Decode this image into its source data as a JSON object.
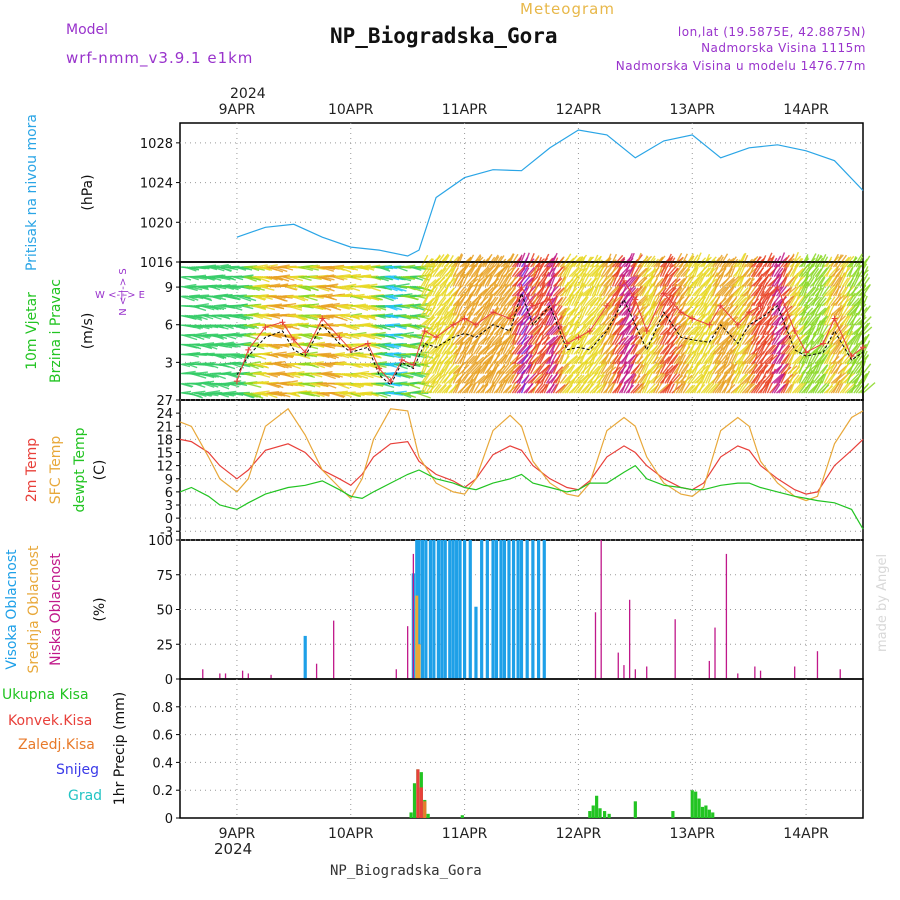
{
  "header": {
    "model_label": "Model",
    "model_name": "wrf-nmm_v3.9.1 e1km",
    "meteogram_label": "Meteogram",
    "station_title": "NP_Biogradska_Gora",
    "lonlat": "lon,lat (19.5875E, 42.8875N)",
    "elevation": "Nadmorska Visina 1115m",
    "model_elevation": "Nadmorska Visina u modelu 1476.77m"
  },
  "footer": {
    "station_label": "NP_Biogradska_Gora",
    "watermark": "made by Angel"
  },
  "time_axis": {
    "year": "2024",
    "days": [
      "9APR",
      "10APR",
      "11APR",
      "12APR",
      "13APR",
      "14APR"
    ]
  },
  "colors": {
    "pressure": "#2aa5e6",
    "temp2m": "#e8403a",
    "sfc_temp": "#e8a83a",
    "dewpoint": "#22c422",
    "high_cloud": "#1ea0e8",
    "mid_cloud": "#e8a83a",
    "low_cloud": "#c0188a",
    "total_precip": "#22c422",
    "conv_precip": "#e8403a",
    "frozen_precip": "#e87a2a",
    "snow": "#3a3ae8",
    "graupel": "#22c4c4",
    "wind_speed": "#000000",
    "gust": "#e8403a",
    "purple_text": "#9933cc",
    "gold_text": "#e8b84a"
  },
  "chart_data": [
    {
      "id": "pressure",
      "type": "line",
      "ylabel_lines": [
        "Pritisak na nivou mora",
        "(hPa)"
      ],
      "ylim": [
        1016,
        1030
      ],
      "yticks": [
        "1016",
        "1020",
        "1024",
        "1028"
      ],
      "ytick_values": [
        1016,
        1020,
        1024,
        1028
      ],
      "series": [
        {
          "x": [
            9,
            9.25,
            9.5,
            9.75,
            10,
            10.25,
            10.5,
            10.6,
            10.75,
            11,
            11.25,
            11.5,
            11.75,
            12,
            12.25,
            12.5,
            12.75,
            13,
            13.25,
            13.5,
            13.75,
            14,
            14.25,
            14.5
          ],
          "values": [
            1018.5,
            1019.5,
            1019.8,
            1018.5,
            1017.5,
            1017.2,
            1016.6,
            1017.2,
            1022.5,
            1024.5,
            1025.3,
            1025.2,
            1027.5,
            1029.3,
            1028.8,
            1026.5,
            1028.2,
            1028.8,
            1026.5,
            1027.5,
            1027.8,
            1027.2,
            1026.2,
            1023.2
          ]
        }
      ]
    },
    {
      "id": "wind",
      "type": "line",
      "ylabel_lines": [
        "10m Vjetar",
        "Brzina i Pravac",
        "(m/s)"
      ],
      "compass_vertical": "N <-|-> S",
      "compass_horizontal": "W <-|-> E",
      "ylim": [
        0,
        11
      ],
      "yticks": [
        "3",
        "6",
        "9"
      ],
      "ytick_values": [
        3,
        6,
        9
      ],
      "series": [
        {
          "name": "speed",
          "x": [
            9,
            9.1,
            9.25,
            9.4,
            9.5,
            9.6,
            9.75,
            9.9,
            10,
            10.15,
            10.25,
            10.35,
            10.45,
            10.55,
            10.65,
            10.75,
            10.9,
            11,
            11.1,
            11.25,
            11.4,
            11.5,
            11.6,
            11.75,
            11.9,
            12,
            12.1,
            12.25,
            12.4,
            12.5,
            12.6,
            12.75,
            12.9,
            13,
            13.15,
            13.25,
            13.4,
            13.5,
            13.6,
            13.75,
            13.9,
            14,
            14.15,
            14.25,
            14.4,
            14.5
          ],
          "values": [
            2.0,
            3.5,
            5.0,
            5.5,
            4.0,
            3.5,
            6.0,
            4.5,
            3.8,
            4.2,
            2.0,
            1.2,
            3.0,
            2.5,
            4.5,
            4.2,
            5.0,
            5.3,
            5.0,
            6.0,
            5.5,
            8.5,
            6.0,
            7.5,
            4.0,
            4.2,
            4.0,
            5.5,
            8.0,
            6.0,
            4.0,
            7.0,
            5.0,
            4.8,
            4.6,
            6.0,
            4.5,
            6.0,
            6.5,
            7.5,
            4.0,
            3.5,
            3.8,
            5.5,
            3.2,
            3.8
          ]
        },
        {
          "name": "gust",
          "x": [
            9,
            9.1,
            9.25,
            9.4,
            9.5,
            9.6,
            9.75,
            9.9,
            10,
            10.15,
            10.25,
            10.35,
            10.45,
            10.55,
            10.65,
            10.75,
            10.9,
            11,
            11.1,
            11.25,
            11.4,
            11.5,
            11.6,
            11.75,
            11.9,
            12,
            12.1,
            12.25,
            12.4,
            12.5,
            12.6,
            12.75,
            12.9,
            13,
            13.15,
            13.25,
            13.4,
            13.5,
            13.6,
            13.75,
            13.9,
            14,
            14.15,
            14.25,
            14.4,
            14.5
          ],
          "values": [
            1.5,
            4.0,
            5.8,
            6.2,
            4.8,
            3.8,
            6.5,
            5.0,
            4.0,
            4.5,
            2.5,
            1.5,
            3.2,
            2.8,
            5.5,
            5.0,
            6.0,
            6.5,
            6.0,
            7.0,
            6.5,
            9.0,
            7.5,
            8.0,
            4.5,
            5.0,
            5.5,
            7.5,
            9.5,
            8.0,
            5.5,
            8.5,
            7.0,
            6.5,
            6.0,
            7.5,
            6.0,
            7.0,
            7.5,
            9.0,
            5.5,
            3.8,
            4.5,
            6.5,
            3.5,
            4.2
          ]
        }
      ]
    },
    {
      "id": "temperature",
      "type": "line",
      "ylabel_lines": [
        "2m Temp",
        "SFC Temp",
        "dewpt Temp",
        "(C)"
      ],
      "ylim": [
        -5,
        27
      ],
      "yticks": [
        "-3",
        "0",
        "3",
        "6",
        "9",
        "12",
        "15",
        "18",
        "21",
        "24",
        "27"
      ],
      "ytick_values": [
        -3,
        0,
        3,
        6,
        9,
        12,
        15,
        18,
        21,
        24,
        27
      ],
      "series": [
        {
          "name": "2m Temp",
          "x": [
            8.5,
            8.6,
            8.75,
            8.85,
            9.0,
            9.1,
            9.25,
            9.45,
            9.6,
            9.75,
            9.9,
            10.0,
            10.1,
            10.2,
            10.35,
            10.5,
            10.6,
            10.75,
            10.9,
            11.0,
            11.1,
            11.25,
            11.4,
            11.5,
            11.6,
            11.75,
            11.9,
            12.0,
            12.1,
            12.25,
            12.4,
            12.5,
            12.6,
            12.75,
            12.9,
            13.0,
            13.1,
            13.25,
            13.4,
            13.5,
            13.6,
            13.75,
            13.9,
            14.0,
            14.1,
            14.25,
            14.4,
            14.5
          ],
          "values": [
            18,
            17.5,
            15,
            12,
            9,
            11,
            15.5,
            17,
            15,
            11,
            9,
            7.5,
            10,
            14,
            17,
            17.5,
            13,
            10,
            8.5,
            7,
            9,
            14.5,
            16.5,
            15.5,
            12,
            9,
            7,
            6.5,
            8.5,
            14,
            16.5,
            15,
            12,
            9,
            7,
            6.5,
            8,
            14,
            16.5,
            15.5,
            12,
            9,
            6.5,
            5.5,
            6,
            12,
            15.5,
            18
          ]
        },
        {
          "name": "SFC Temp",
          "x": [
            8.5,
            8.6,
            8.75,
            8.85,
            9.0,
            9.1,
            9.25,
            9.45,
            9.6,
            9.75,
            9.9,
            10.0,
            10.1,
            10.2,
            10.35,
            10.5,
            10.6,
            10.75,
            10.9,
            11.0,
            11.1,
            11.25,
            11.4,
            11.5,
            11.6,
            11.75,
            11.9,
            12.0,
            12.1,
            12.25,
            12.4,
            12.5,
            12.6,
            12.75,
            12.9,
            13.0,
            13.1,
            13.25,
            13.4,
            13.5,
            13.6,
            13.75,
            13.9,
            14.0,
            14.1,
            14.25,
            14.4,
            14.5
          ],
          "values": [
            22,
            21,
            14,
            9,
            6,
            9,
            21,
            25,
            19,
            11,
            7,
            4.5,
            9,
            18,
            25,
            24.5,
            14,
            8,
            6,
            5.5,
            9,
            20,
            23.5,
            21,
            13,
            8,
            5.5,
            5,
            8,
            20,
            23,
            21,
            14,
            8,
            5.5,
            5,
            7,
            20,
            23,
            21,
            13,
            8,
            5,
            4,
            5,
            17,
            23,
            24.5
          ]
        },
        {
          "name": "dewpt Temp",
          "x": [
            8.5,
            8.6,
            8.75,
            8.85,
            9.0,
            9.1,
            9.25,
            9.45,
            9.6,
            9.75,
            9.9,
            10.0,
            10.1,
            10.2,
            10.35,
            10.5,
            10.6,
            10.75,
            10.9,
            11.0,
            11.1,
            11.25,
            11.4,
            11.5,
            11.6,
            11.75,
            11.9,
            12.0,
            12.1,
            12.25,
            12.4,
            12.5,
            12.6,
            12.75,
            12.9,
            13.0,
            13.1,
            13.25,
            13.4,
            13.5,
            13.6,
            13.75,
            13.9,
            14.0,
            14.1,
            14.25,
            14.4,
            14.5
          ],
          "values": [
            6,
            7,
            5,
            3,
            2,
            3.5,
            5.5,
            7,
            7.5,
            8.5,
            6.5,
            5,
            4.5,
            6,
            8,
            10,
            11,
            9,
            8,
            7,
            6.5,
            8,
            9,
            10,
            8,
            7,
            6,
            6.5,
            8,
            8,
            10.5,
            12,
            9,
            7.5,
            7,
            6.5,
            6.5,
            7.5,
            8,
            8,
            7,
            6,
            5,
            4.5,
            4,
            3.5,
            2,
            -2.5
          ]
        }
      ]
    },
    {
      "id": "clouds",
      "type": "bar",
      "ylabel_lines": [
        "Visoka Oblacnost",
        "Srednja Oblacnost",
        "Niska Oblacnost",
        "(%)"
      ],
      "ylim": [
        0,
        100
      ],
      "yticks": [
        "0",
        "25",
        "50",
        "75",
        "100"
      ],
      "ytick_values": [
        0,
        25,
        50,
        75,
        100
      ],
      "series": [
        {
          "name": "Visoka Oblacnost",
          "x": [
            9.6,
            10.55,
            10.58,
            10.6,
            10.63,
            10.66,
            10.7,
            10.73,
            10.77,
            10.8,
            10.83,
            10.87,
            10.9,
            10.93,
            10.96,
            11.0,
            11.05,
            11.1,
            11.15,
            11.2,
            11.25,
            11.28,
            11.32,
            11.35,
            11.39,
            11.43,
            11.47,
            11.5,
            11.55,
            11.6,
            11.65,
            11.7
          ],
          "values": [
            31,
            76,
            100,
            100,
            100,
            100,
            100,
            100,
            100,
            100,
            100,
            100,
            100,
            100,
            100,
            100,
            100,
            52,
            100,
            100,
            100,
            100,
            100,
            100,
            100,
            100,
            100,
            100,
            100,
            100,
            100,
            100
          ]
        },
        {
          "name": "Srednja Oblacnost",
          "x": [
            10.58,
            10.6
          ],
          "values": [
            60,
            25
          ]
        },
        {
          "name": "Niska Oblacnost",
          "x": [
            8.7,
            8.85,
            8.9,
            9.05,
            9.1,
            9.3,
            9.7,
            9.85,
            10.4,
            10.5,
            10.55,
            12.15,
            12.2,
            12.35,
            12.4,
            12.45,
            12.5,
            12.6,
            12.85,
            13.15,
            13.2,
            13.3,
            13.4,
            13.55,
            13.6,
            13.9,
            14.1,
            14.3
          ],
          "values": [
            7,
            4,
            4,
            6,
            4,
            3,
            11,
            42,
            7,
            38,
            90,
            48,
            100,
            19,
            10,
            57,
            7,
            9,
            43,
            13,
            37,
            90,
            4,
            9,
            6,
            9,
            20,
            7
          ]
        }
      ]
    },
    {
      "id": "precipitation",
      "type": "bar",
      "ylabel_lines": [
        "1hr Precip (mm)"
      ],
      "legend": [
        "Ukupna Kisa",
        "Konvek.Kisa",
        "Zaledj.Kisa",
        "Snijeg",
        "Grad"
      ],
      "ylim": [
        0,
        1.0
      ],
      "yticks": [
        "0",
        "0.2",
        "0.4",
        "0.6",
        "0.8"
      ],
      "ytick_values": [
        0,
        0.2,
        0.4,
        0.6,
        0.8
      ],
      "series": [
        {
          "name": "Ukupna Kisa",
          "x": [
            10.53,
            10.56,
            10.59,
            10.62,
            10.65,
            10.68,
            10.98,
            12.1,
            12.13,
            12.16,
            12.19,
            12.23,
            12.27,
            12.5,
            12.83,
            13.0,
            13.03,
            13.06,
            13.09,
            13.12,
            13.15,
            13.18
          ],
          "values": [
            0.04,
            0.25,
            0.35,
            0.33,
            0.13,
            0.03,
            0.02,
            0.05,
            0.09,
            0.16,
            0.07,
            0.05,
            0.03,
            0.12,
            0.05,
            0.2,
            0.19,
            0.14,
            0.08,
            0.09,
            0.06,
            0.04
          ]
        },
        {
          "name": "Konvek.Kisa",
          "x": [
            10.59,
            10.62
          ],
          "values": [
            0.35,
            0.22
          ]
        },
        {
          "name": "Zaledj.Kisa",
          "x": [
            10.65
          ],
          "values": [
            0.12
          ]
        }
      ]
    }
  ]
}
